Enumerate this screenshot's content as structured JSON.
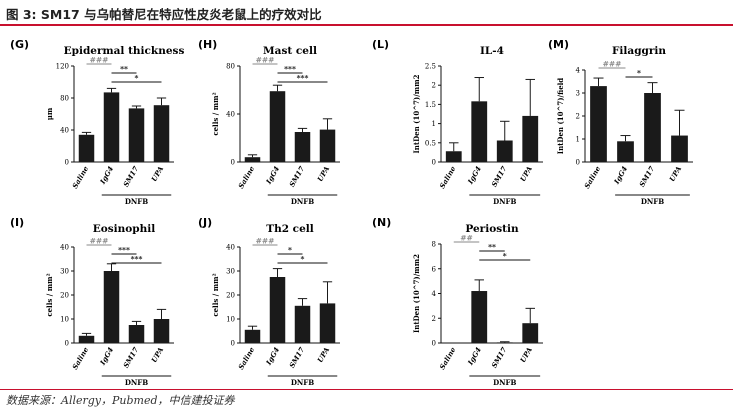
{
  "figure": {
    "title": "图 3: SM17 与乌帕替尼在特应性皮炎老鼠上的疗效对比",
    "source": "数据来源：Allergy，Pubmed，中信建投证券",
    "accent_color": "#c8102e",
    "bar_color": "#1a1a1a"
  },
  "chart_data": [
    {
      "panel": "(G)",
      "type": "bar",
      "title": "Epidermal thickness",
      "ylabel": "μm",
      "categories": [
        "Saline",
        "IgG4",
        "SM17",
        "UPA"
      ],
      "group_label": "DNFB",
      "group_span": [
        1,
        3
      ],
      "values": [
        34,
        87,
        67,
        71
      ],
      "errors": [
        3,
        5,
        3,
        9
      ],
      "ylim": [
        0,
        120
      ],
      "yticks": [
        0,
        40,
        80,
        120
      ],
      "sig": [
        {
          "from": 0,
          "to": 1,
          "label": "###",
          "style": "gray"
        },
        {
          "from": 1,
          "to": 2,
          "label": "**",
          "style": "black"
        },
        {
          "from": 1,
          "to": 3,
          "label": "*",
          "style": "black"
        }
      ]
    },
    {
      "panel": "(H)",
      "type": "bar",
      "title": "Mast cell",
      "ylabel": "cells / mm²",
      "categories": [
        "Saline",
        "IgG4",
        "SM17",
        "UPA"
      ],
      "group_label": "DNFB",
      "group_span": [
        1,
        3
      ],
      "values": [
        4,
        59,
        25,
        27
      ],
      "errors": [
        2,
        5,
        3,
        9
      ],
      "ylim": [
        0,
        80
      ],
      "yticks": [
        0,
        40,
        80
      ],
      "sig": [
        {
          "from": 0,
          "to": 1,
          "label": "###",
          "style": "gray"
        },
        {
          "from": 1,
          "to": 2,
          "label": "***",
          "style": "black"
        },
        {
          "from": 1,
          "to": 3,
          "label": "***",
          "style": "black"
        }
      ]
    },
    {
      "panel": "(L)",
      "type": "bar",
      "title": "IL-4",
      "ylabel": "IntDen (10^7)/mm2",
      "categories": [
        "Saline",
        "IgG4",
        "SM17",
        "UPA"
      ],
      "group_label": "DNFB",
      "group_span": [
        1,
        3
      ],
      "values": [
        0.28,
        1.58,
        0.56,
        1.2
      ],
      "errors": [
        0.22,
        0.62,
        0.5,
        0.95
      ],
      "ylim": [
        0,
        2.5
      ],
      "yticks": [
        0,
        0.5,
        1.0,
        1.5,
        2.0,
        2.5
      ],
      "sig": []
    },
    {
      "panel": "(M)",
      "type": "bar",
      "title": "Filaggrin",
      "ylabel": "IntDen (10^7)/field",
      "categories": [
        "Saline",
        "IgG4",
        "SM17",
        "UPA"
      ],
      "group_label": "DNFB",
      "group_span": [
        1,
        3
      ],
      "values": [
        3.3,
        0.9,
        3.0,
        1.15
      ],
      "errors": [
        0.35,
        0.25,
        0.45,
        1.1
      ],
      "ylim": [
        0,
        4
      ],
      "yticks": [
        0,
        1,
        2,
        3,
        4
      ],
      "sig": [
        {
          "from": 0,
          "to": 1,
          "label": "###",
          "style": "gray"
        },
        {
          "from": 1,
          "to": 2,
          "label": "*",
          "style": "black"
        }
      ]
    },
    {
      "panel": "(I)",
      "type": "bar",
      "title": "Eosinophil",
      "ylabel": "cells / mm²",
      "categories": [
        "Saline",
        "IgG4",
        "SM17",
        "UPA"
      ],
      "group_label": "DNFB",
      "group_span": [
        1,
        3
      ],
      "values": [
        3,
        30,
        7.5,
        10
      ],
      "errors": [
        1,
        3,
        1.5,
        4
      ],
      "ylim": [
        0,
        40
      ],
      "yticks": [
        0,
        10,
        20,
        30,
        40
      ],
      "sig": [
        {
          "from": 0,
          "to": 1,
          "label": "###",
          "style": "gray"
        },
        {
          "from": 1,
          "to": 2,
          "label": "***",
          "style": "black"
        },
        {
          "from": 1,
          "to": 3,
          "label": "***",
          "style": "black"
        }
      ]
    },
    {
      "panel": "(J)",
      "type": "bar",
      "title": "Th2 cell",
      "ylabel": "cells / mm²",
      "categories": [
        "Saline",
        "IgG4",
        "SM17",
        "UPA"
      ],
      "group_label": "DNFB",
      "group_span": [
        1,
        3
      ],
      "values": [
        5.5,
        27.5,
        15.5,
        16.5
      ],
      "errors": [
        1.5,
        3.5,
        3,
        9
      ],
      "ylim": [
        0,
        40
      ],
      "yticks": [
        0,
        10,
        20,
        30,
        40
      ],
      "sig": [
        {
          "from": 0,
          "to": 1,
          "label": "###",
          "style": "gray"
        },
        {
          "from": 1,
          "to": 2,
          "label": "*",
          "style": "black"
        },
        {
          "from": 1,
          "to": 3,
          "label": "*",
          "style": "black"
        }
      ]
    },
    {
      "panel": "(N)",
      "type": "bar",
      "title": "Periostin",
      "ylabel": "IntDen (10^7)/mm2",
      "categories": [
        "Saline",
        "IgG4",
        "SM17",
        "UPA"
      ],
      "group_label": "DNFB",
      "group_span": [
        1,
        3
      ],
      "values": [
        0,
        4.2,
        0.05,
        1.6
      ],
      "errors": [
        0,
        0.9,
        0.05,
        1.2
      ],
      "ylim": [
        0,
        8
      ],
      "yticks": [
        0,
        2,
        4,
        6,
        8
      ],
      "sig": [
        {
          "from": 0,
          "to": 1,
          "label": "##",
          "style": "gray"
        },
        {
          "from": 1,
          "to": 2,
          "label": "**",
          "style": "black"
        },
        {
          "from": 1,
          "to": 3,
          "label": "*",
          "style": "black"
        }
      ]
    }
  ]
}
